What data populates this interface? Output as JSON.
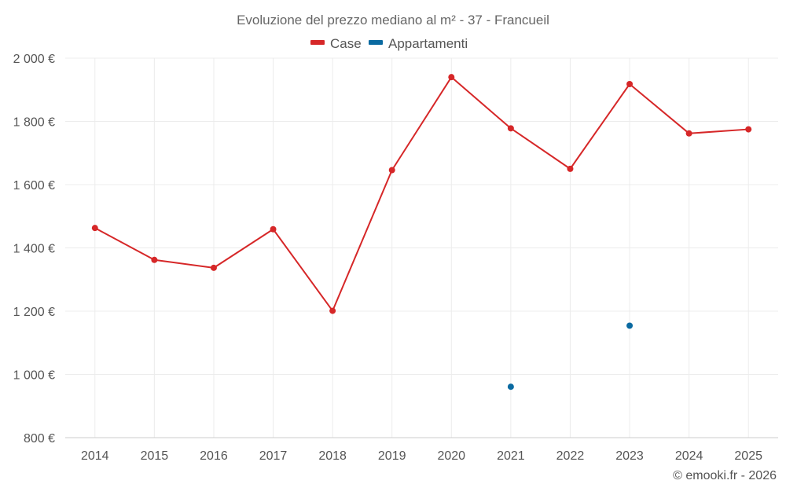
{
  "chart_data": {
    "type": "line",
    "title": "Evoluzione del prezzo mediano al m² - 37 - Francueil",
    "xlabel": "",
    "ylabel": "",
    "categories": [
      "2014",
      "2015",
      "2016",
      "2017",
      "2018",
      "2019",
      "2020",
      "2021",
      "2022",
      "2023",
      "2024",
      "2025"
    ],
    "ylim": [
      800,
      2000
    ],
    "yticks": [
      800,
      1000,
      1200,
      1400,
      1600,
      1800,
      2000
    ],
    "ytick_labels": [
      "800 €",
      "1 000 €",
      "1 200 €",
      "1 400 €",
      "1 600 €",
      "1 800 €",
      "2 000 €"
    ],
    "grid": true,
    "legend_position": "top-center",
    "series": [
      {
        "name": "Case",
        "color": "#d62728",
        "values": [
          1463,
          1362,
          1337,
          1459,
          1201,
          1646,
          1940,
          1778,
          1650,
          1918,
          1762,
          1775
        ]
      },
      {
        "name": "Appartamenti",
        "color": "#0a6aa1",
        "values": [
          null,
          null,
          null,
          null,
          null,
          null,
          null,
          961,
          null,
          1154,
          null,
          null
        ]
      }
    ],
    "credit": "© emooki.fr - 2026"
  }
}
